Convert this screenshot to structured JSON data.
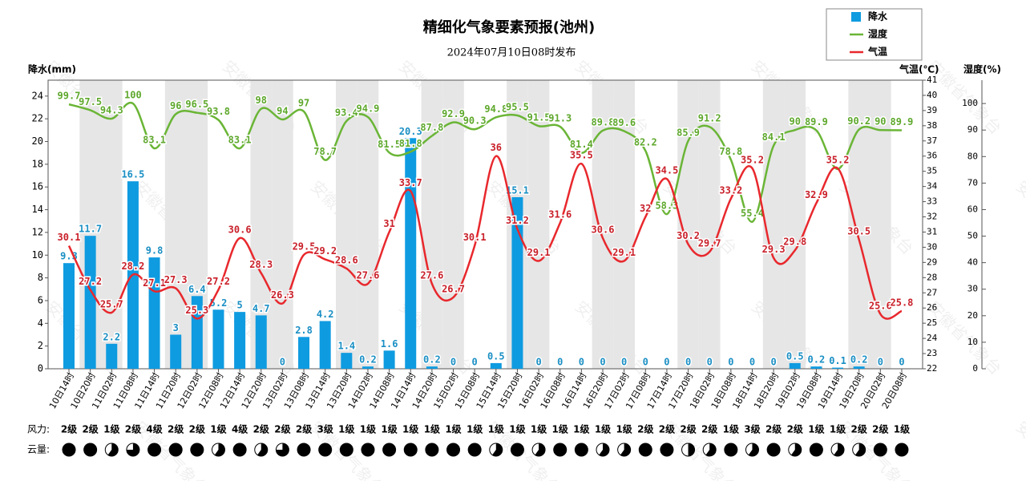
{
  "chart_data": {
    "type": "weather",
    "title": "精细化气象要素预报(池州)",
    "subtitle": "2024年07月10日08时发布",
    "watermark": "安徽省气象台",
    "y_label": "降水(mm)",
    "y2_label": "气温(℃)",
    "y3_label": "湿度(%)",
    "wind_label": "风力:",
    "cloud_label": "云量:",
    "categories": [
      "10日14时",
      "10日20时",
      "11日02时",
      "11日08时",
      "11日14时",
      "11日20时",
      "12日02时",
      "12日08时",
      "12日14时",
      "12日20时",
      "13日02时",
      "13日08时",
      "13日14时",
      "13日20时",
      "14日02时",
      "14日08时",
      "14日14时",
      "14日20时",
      "15日02时",
      "15日08时",
      "15日14时",
      "15日20时",
      "16日02时",
      "16日08时",
      "16日14时",
      "16日20时",
      "17日02时",
      "17日08时",
      "17日14时",
      "17日20时",
      "18日02时",
      "18日08时",
      "18日14时",
      "18日20时",
      "19日02时",
      "19日08时",
      "19日14时",
      "19日20时",
      "20日02时",
      "20日08时"
    ],
    "ylim": [
      0,
      25.4
    ],
    "yticks": [
      0,
      2,
      4,
      6,
      8,
      10,
      12,
      14,
      16,
      18,
      20,
      22,
      24
    ],
    "y2lim": [
      22,
      41
    ],
    "y2ticks": [
      22,
      23,
      24,
      25,
      26,
      27,
      28,
      29,
      30,
      31,
      32,
      33,
      34,
      35,
      36,
      37,
      38,
      39,
      40,
      41
    ],
    "y3lim": [
      0,
      108.8
    ],
    "y3ticks": [
      0,
      10,
      20,
      30,
      40,
      50,
      60,
      70,
      80,
      90,
      100
    ],
    "series": [
      {
        "name": "降水",
        "type": "bar",
        "color": "#0f9be0",
        "values": [
          9.3,
          11.7,
          2.2,
          16.5,
          9.8,
          3,
          6.4,
          5.2,
          5,
          4.7,
          0,
          2.8,
          4.2,
          1.4,
          0.2,
          1.6,
          20.3,
          0.2,
          0,
          0,
          0.5,
          15.1,
          0,
          0,
          0,
          0,
          0,
          0,
          0,
          0,
          0,
          0,
          0,
          0,
          0.5,
          0.2,
          0.1,
          0.2,
          0,
          0
        ]
      },
      {
        "name": "湿度",
        "type": "line",
        "axis": "y3",
        "color": "#6ab536",
        "label_color": "#5ea82c",
        "values": [
          99.7,
          97.5,
          94.3,
          100,
          83.1,
          96,
          96.5,
          93.8,
          83.1,
          98,
          94,
          97,
          78.7,
          93.4,
          94.9,
          81.5,
          81.8,
          87.8,
          92.9,
          90.3,
          94.8,
          95.5,
          91.5,
          91.3,
          81.4,
          89.8,
          89.6,
          82.2,
          58.3,
          85.9,
          91.2,
          78.8,
          55.4,
          84.1,
          90,
          89.9,
          75.3,
          90.2,
          90,
          89.9
        ]
      },
      {
        "name": "气温",
        "type": "line",
        "axis": "y2",
        "color": "#e8282d",
        "label_color": "#c9202a",
        "values": [
          30.1,
          27.2,
          25.7,
          28.2,
          27.1,
          27.3,
          25.3,
          27.2,
          30.6,
          28.3,
          26.3,
          29.5,
          29.2,
          28.6,
          27.6,
          31,
          33.7,
          27.6,
          26.7,
          30.1,
          36,
          31.2,
          29.1,
          31.6,
          35.5,
          30.6,
          29.1,
          32,
          34.5,
          30.2,
          29.7,
          33.2,
          35.2,
          29.3,
          29.8,
          32.9,
          35.2,
          30.5,
          25.6,
          25.8
        ]
      }
    ],
    "wind": [
      "2级",
      "2级",
      "1级",
      "2级",
      "4级",
      "2级",
      "2级",
      "1级",
      "4级",
      "2级",
      "2级",
      "2级",
      "3级",
      "1级",
      "1级",
      "1级",
      "1级",
      "1级",
      "1级",
      "1级",
      "1级",
      "1级",
      "1级",
      "1级",
      "1级",
      "1级",
      "1级",
      "2级",
      "2级",
      "2级",
      "2级",
      "1级",
      "3级",
      "2级",
      "2级",
      "1级",
      "1级",
      "2级",
      "2级",
      "1级"
    ],
    "cloud": [
      1,
      1,
      0.6,
      0.75,
      1,
      1,
      1,
      0.6,
      1,
      0.6,
      0.75,
      1,
      1,
      1,
      1,
      1,
      1,
      1,
      1,
      1,
      0.6,
      1,
      0.6,
      1,
      1,
      0.6,
      0.6,
      1,
      1,
      0.5,
      0.6,
      1,
      0.6,
      1,
      0.6,
      1,
      0.6,
      0.6,
      1,
      1
    ]
  }
}
